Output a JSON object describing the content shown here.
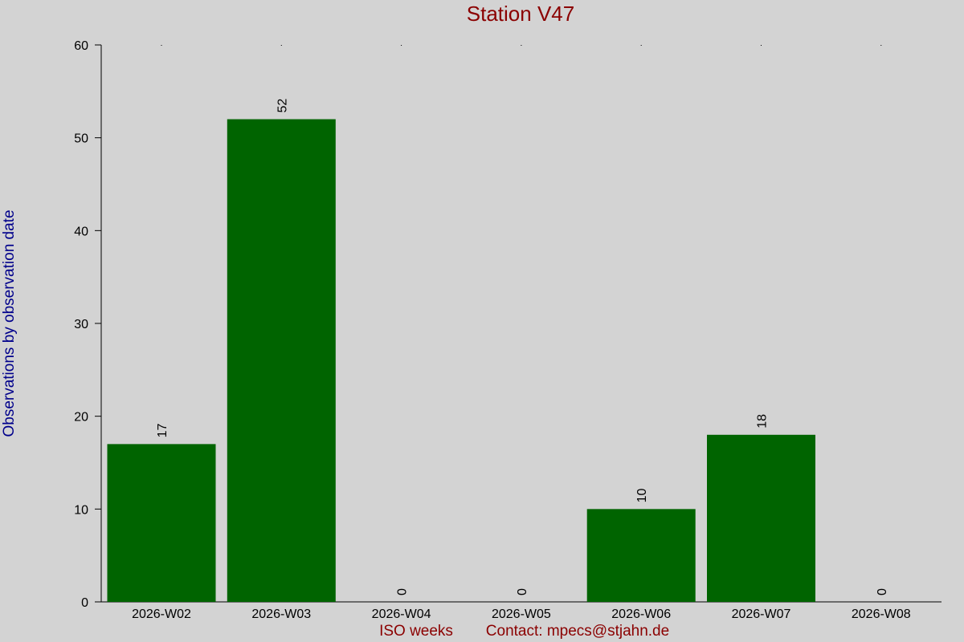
{
  "chart_data": {
    "type": "bar",
    "title": "Station V47",
    "xlabel": "ISO weeks",
    "ylabel": "Observations by observation date",
    "contact": "Contact: mpecs@stjahn.de",
    "categories": [
      "2026-W02",
      "2026-W03",
      "2026-W04",
      "2026-W05",
      "2026-W06",
      "2026-W07",
      "2026-W08"
    ],
    "values": [
      17,
      52,
      0,
      0,
      10,
      18,
      0
    ],
    "ylim": [
      0,
      60
    ],
    "yticks": [
      0,
      10,
      20,
      30,
      40,
      50,
      60
    ],
    "grid": false,
    "colors": {
      "background": "#d3d3d3",
      "bar": "#006400",
      "title": "#8b0000",
      "ylabel": "#00008b",
      "xlabel": "#8b0000",
      "axis": "#000000"
    }
  }
}
